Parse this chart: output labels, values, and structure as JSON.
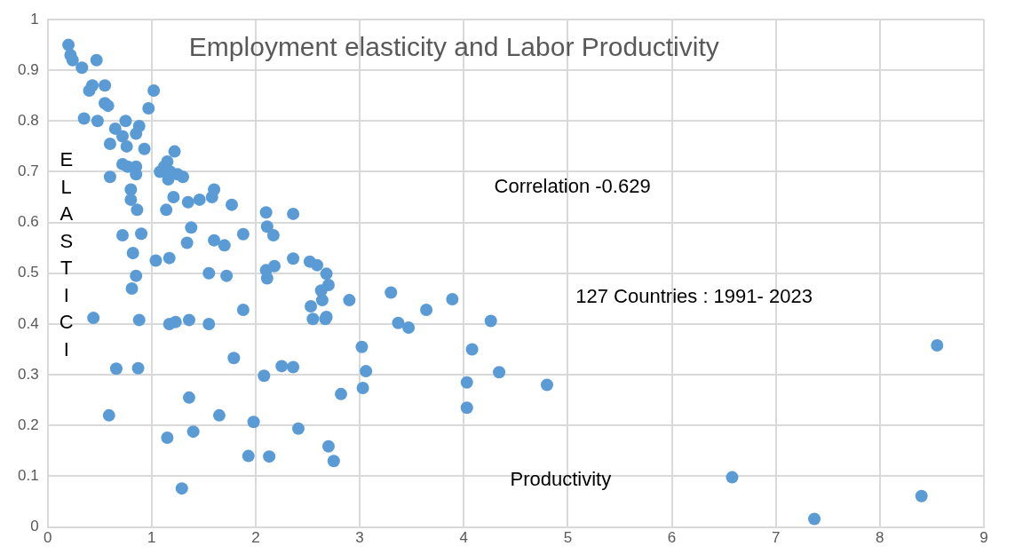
{
  "chart_data": {
    "type": "scatter",
    "title": "Employment elasticity and Labor Productivity",
    "xlabel": "Productivity",
    "ylabel": "ELASTICI",
    "annotations": [
      "Correlation -0.629",
      "127 Countries : 1991- 2023"
    ],
    "xlim": [
      0,
      9
    ],
    "xticks": [
      0,
      1,
      2,
      3,
      4,
      5,
      6,
      7,
      8,
      9
    ],
    "ylim": [
      0,
      1
    ],
    "yticks": [
      0,
      0.1,
      0.2,
      0.3,
      0.4,
      0.5,
      0.6,
      0.7,
      0.8,
      0.9,
      1
    ],
    "grid": true,
    "legend": false,
    "marker": "circle",
    "series": [
      {
        "color": "#5b9bd5",
        "x": [
          0.2,
          0.22,
          0.24,
          0.33,
          0.47,
          0.4,
          0.43,
          0.55,
          0.35,
          0.48,
          0.55,
          0.58,
          0.97,
          1.02,
          0.65,
          0.6,
          0.75,
          0.72,
          0.76,
          0.88,
          0.85,
          0.93,
          0.6,
          0.72,
          0.77,
          0.85,
          0.85,
          1.08,
          1.12,
          1.15,
          1.18,
          1.22,
          1.16,
          1.25,
          1.3,
          0.8,
          0.8,
          0.86,
          1.14,
          1.21,
          1.35,
          1.46,
          1.58,
          1.6,
          1.77,
          0.72,
          0.9,
          1.38,
          1.34,
          1.6,
          1.7,
          1.88,
          0.82,
          0.85,
          0.81,
          1.04,
          1.17,
          1.55,
          1.72,
          0.44,
          0.88,
          1.17,
          1.23,
          1.36,
          1.55,
          1.88,
          0.66,
          0.87,
          1.79,
          0.59,
          1.36,
          1.15,
          1.4,
          1.65,
          1.98,
          1.29,
          1.93,
          2.13,
          2.1,
          2.36,
          2.11,
          2.17,
          2.36,
          2.52,
          2.59,
          2.1,
          2.18,
          2.11,
          2.68,
          2.7,
          2.63,
          2.64,
          2.9,
          2.53,
          2.55,
          2.67,
          2.68,
          3.3,
          3.37,
          3.47,
          3.64,
          3.89,
          4.26,
          3.02,
          3.06,
          3.03,
          2.82,
          4.08,
          4.34,
          4.03,
          4.03,
          2.25,
          2.36,
          2.08,
          2.41,
          2.7,
          2.75,
          4.8,
          6.58,
          7.37,
          8.4,
          8.55
        ],
        "values": [
          0.95,
          0.93,
          0.92,
          0.905,
          0.92,
          0.86,
          0.87,
          0.87,
          0.805,
          0.8,
          0.835,
          0.83,
          0.825,
          0.86,
          0.785,
          0.755,
          0.8,
          0.77,
          0.75,
          0.79,
          0.775,
          0.745,
          0.69,
          0.715,
          0.71,
          0.71,
          0.695,
          0.7,
          0.71,
          0.72,
          0.7,
          0.74,
          0.685,
          0.695,
          0.69,
          0.665,
          0.645,
          0.625,
          0.625,
          0.65,
          0.64,
          0.645,
          0.65,
          0.665,
          0.635,
          0.575,
          0.578,
          0.59,
          0.56,
          0.565,
          0.555,
          0.577,
          0.54,
          0.495,
          0.47,
          0.525,
          0.53,
          0.5,
          0.495,
          0.412,
          0.408,
          0.4,
          0.404,
          0.408,
          0.4,
          0.428,
          0.312,
          0.313,
          0.333,
          0.22,
          0.255,
          0.176,
          0.188,
          0.22,
          0.207,
          0.076,
          0.14,
          0.139,
          0.62,
          0.617,
          0.592,
          0.575,
          0.529,
          0.523,
          0.516,
          0.506,
          0.514,
          0.49,
          0.499,
          0.477,
          0.466,
          0.447,
          0.447,
          0.435,
          0.41,
          0.41,
          0.414,
          0.462,
          0.402,
          0.393,
          0.428,
          0.449,
          0.406,
          0.355,
          0.307,
          0.274,
          0.262,
          0.35,
          0.305,
          0.285,
          0.235,
          0.317,
          0.315,
          0.298,
          0.194,
          0.159,
          0.13,
          0.28,
          0.098,
          0.016,
          0.061,
          0.358
        ]
      }
    ]
  }
}
